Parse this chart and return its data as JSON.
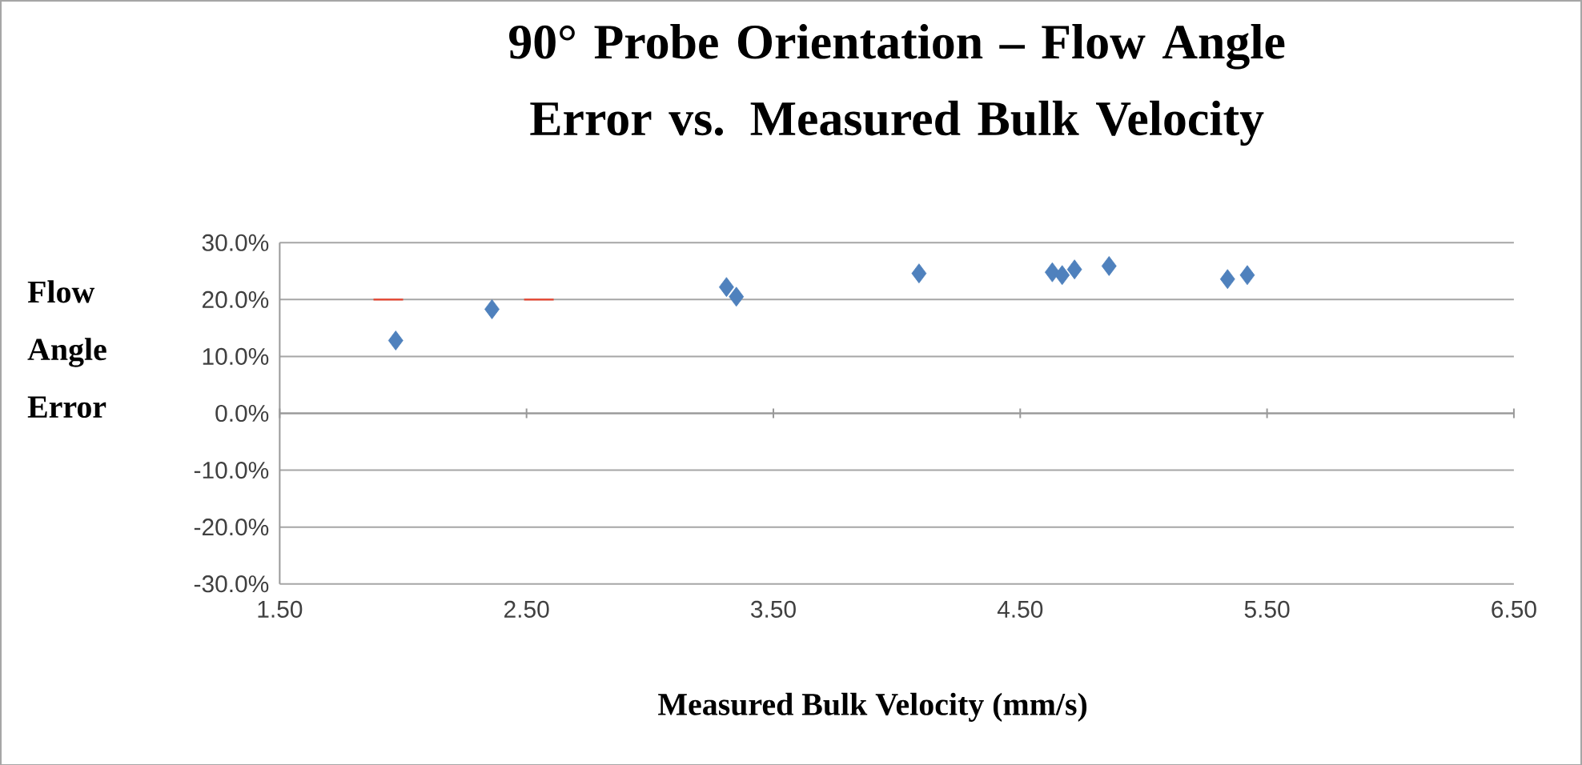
{
  "chart_data": {
    "type": "scatter",
    "title": "90° Probe Orientation – Flow Angle Error vs. Measured Bulk Velocity",
    "xlabel": "Measured Bulk Velocity (mm/s)",
    "ylabel": "Flow Angle Error",
    "xlim": [
      1.5,
      6.5
    ],
    "ylim": [
      -30,
      30
    ],
    "xticks": [
      {
        "value": 1.5,
        "label": "1.50"
      },
      {
        "value": 2.5,
        "label": "2.50"
      },
      {
        "value": 3.5,
        "label": "3.50"
      },
      {
        "value": 4.5,
        "label": "4.50"
      },
      {
        "value": 5.5,
        "label": "5.50"
      },
      {
        "value": 6.5,
        "label": "6.50"
      }
    ],
    "yticks": [
      {
        "value": -30,
        "label": "-30.0%"
      },
      {
        "value": -20,
        "label": "-20.0%"
      },
      {
        "value": -10,
        "label": "-10.0%"
      },
      {
        "value": 0,
        "label": "0.0%"
      },
      {
        "value": 10,
        "label": "10.0%"
      },
      {
        "value": 20,
        "label": "20.0%"
      },
      {
        "value": 30,
        "label": "30.0%"
      }
    ],
    "grid": "y",
    "marker": "diamond",
    "series": [
      {
        "color": "#4f81bd",
        "x": [
          1.97,
          2.36,
          3.31,
          3.35,
          4.09,
          4.63,
          4.67,
          4.72,
          4.86,
          5.34,
          5.42
        ],
        "values": [
          12.8,
          18.3,
          22.2,
          20.5,
          24.6,
          24.8,
          24.3,
          25.3,
          25.9,
          23.6,
          24.3
        ]
      },
      {
        "type": "line",
        "color": "#e8432e",
        "marker": "none",
        "line_style": "solid",
        "x": [
          1.88,
          2.0,
          null,
          2.49,
          2.61
        ],
        "values": [
          20,
          20,
          null,
          20,
          20
        ]
      }
    ]
  }
}
